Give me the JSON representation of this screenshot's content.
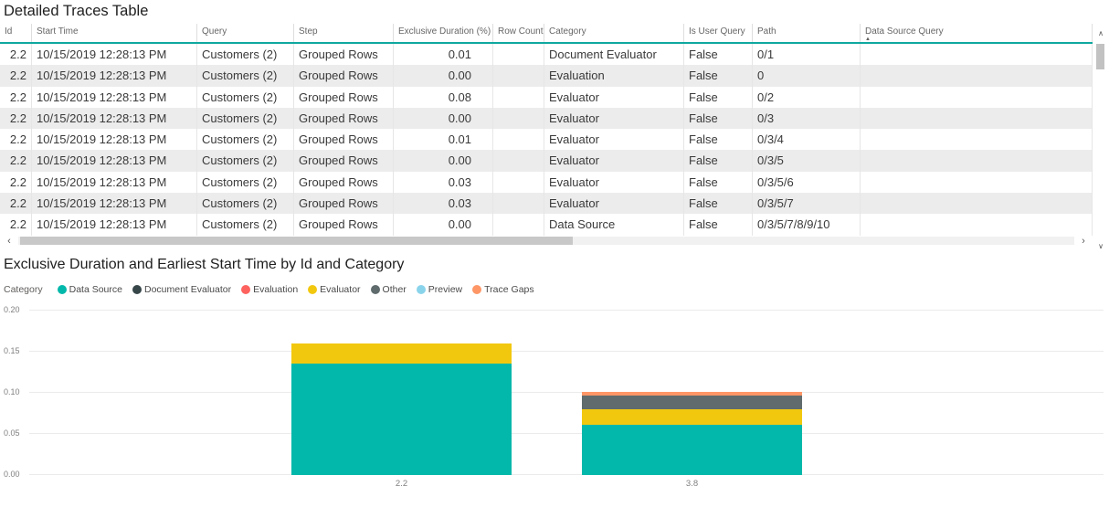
{
  "table": {
    "title": "Detailed Traces Table",
    "columns": [
      "Id",
      "Start Time",
      "Query",
      "Step",
      "Exclusive Duration (%)",
      "Row Count",
      "Category",
      "Is User Query",
      "Path",
      "Data Source Query"
    ],
    "sorted_column": "Data Source Query",
    "sort_direction_icon": "▲",
    "rows": [
      [
        "2.2",
        "10/15/2019 12:28:13 PM",
        "Customers (2)",
        "Grouped Rows",
        "0.01",
        "",
        "Document Evaluator",
        "False",
        "0/1",
        ""
      ],
      [
        "2.2",
        "10/15/2019 12:28:13 PM",
        "Customers (2)",
        "Grouped Rows",
        "0.00",
        "",
        "Evaluation",
        "False",
        "0",
        ""
      ],
      [
        "2.2",
        "10/15/2019 12:28:13 PM",
        "Customers (2)",
        "Grouped Rows",
        "0.08",
        "",
        "Evaluator",
        "False",
        "0/2",
        ""
      ],
      [
        "2.2",
        "10/15/2019 12:28:13 PM",
        "Customers (2)",
        "Grouped Rows",
        "0.00",
        "",
        "Evaluator",
        "False",
        "0/3",
        ""
      ],
      [
        "2.2",
        "10/15/2019 12:28:13 PM",
        "Customers (2)",
        "Grouped Rows",
        "0.01",
        "",
        "Evaluator",
        "False",
        "0/3/4",
        ""
      ],
      [
        "2.2",
        "10/15/2019 12:28:13 PM",
        "Customers (2)",
        "Grouped Rows",
        "0.00",
        "",
        "Evaluator",
        "False",
        "0/3/5",
        ""
      ],
      [
        "2.2",
        "10/15/2019 12:28:13 PM",
        "Customers (2)",
        "Grouped Rows",
        "0.03",
        "",
        "Evaluator",
        "False",
        "0/3/5/6",
        ""
      ],
      [
        "2.2",
        "10/15/2019 12:28:13 PM",
        "Customers (2)",
        "Grouped Rows",
        "0.03",
        "",
        "Evaluator",
        "False",
        "0/3/5/7",
        ""
      ],
      [
        "2.2",
        "10/15/2019 12:28:13 PM",
        "Customers (2)",
        "Grouped Rows",
        "0.00",
        "",
        "Data Source",
        "False",
        "0/3/5/7/8/9/10",
        ""
      ]
    ]
  },
  "chart_data": {
    "type": "bar",
    "stacked": true,
    "title": "Exclusive Duration and Earliest Start Time by Id and Category",
    "legend_title": "Category",
    "legend_position": "top",
    "legend": [
      {
        "label": "Data Source",
        "color": "#01B8AA"
      },
      {
        "label": "Document Evaluator",
        "color": "#374649"
      },
      {
        "label": "Evaluation",
        "color": "#FD625E"
      },
      {
        "label": "Evaluator",
        "color": "#F2C80F"
      },
      {
        "label": "Other",
        "color": "#5F6B6D"
      },
      {
        "label": "Preview",
        "color": "#8AD4EB"
      },
      {
        "label": "Trace Gaps",
        "color": "#FE9666"
      }
    ],
    "categories": [
      "2.2",
      "3.8"
    ],
    "series": [
      {
        "name": "Data Source",
        "color": "#01B8AA",
        "values": [
          0.135,
          0.061
        ]
      },
      {
        "name": "Evaluator",
        "color": "#F2C80F",
        "values": [
          0.025,
          0.019
        ]
      },
      {
        "name": "Other",
        "color": "#5F6B6D",
        "values": [
          0,
          0.016
        ]
      },
      {
        "name": "Trace Gaps",
        "color": "#FE9666",
        "values": [
          0,
          0.005
        ]
      }
    ],
    "xlabel": "",
    "ylabel": "",
    "ylim": [
      0,
      0.2
    ],
    "yticks": [
      0.0,
      0.05,
      0.1,
      0.15,
      0.2
    ],
    "grid": true
  }
}
